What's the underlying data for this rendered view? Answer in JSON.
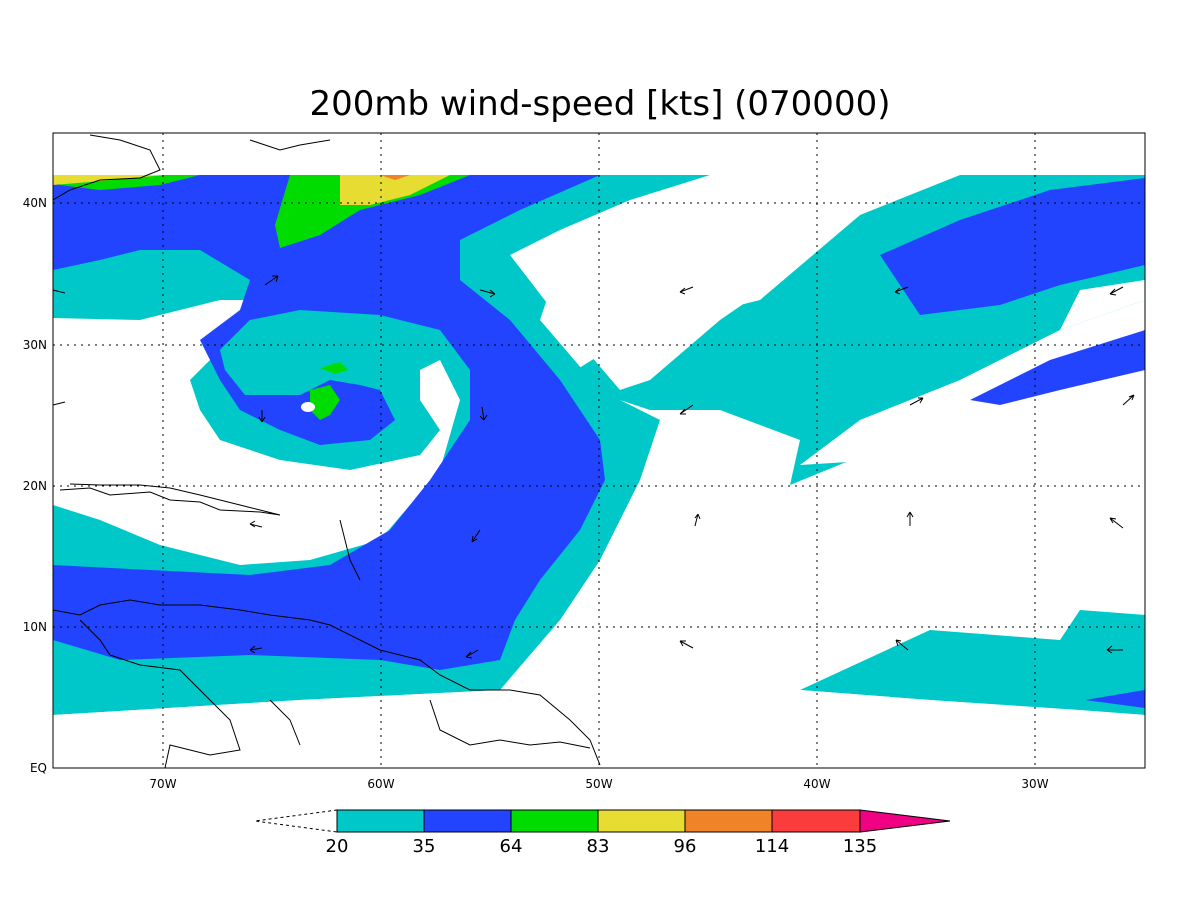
{
  "title": "200mb wind-speed [kts] (070000)",
  "x_axis": {
    "ticks": [
      "70W",
      "60W",
      "50W",
      "40W",
      "30W"
    ],
    "range_lon": [
      -75,
      -25
    ]
  },
  "y_axis": {
    "ticks": [
      "EQ",
      "10N",
      "20N",
      "30N",
      "40N"
    ],
    "range_lat": [
      0,
      45
    ]
  },
  "grid": "dotted",
  "colorbar": {
    "unit": "kts",
    "thresholds": [
      "20",
      "35",
      "64",
      "83",
      "96",
      "114",
      "135"
    ],
    "colors": [
      "#00c8c8",
      "#2244ff",
      "#00dc00",
      "#e6dc32",
      "#f08228",
      "#fa3c3c",
      "#f00082"
    ],
    "below_min": "white (dashed open arrow)",
    "above_max": "#f00082"
  },
  "colors": {
    "c20": "#00c8c8",
    "c35": "#2244ff",
    "c64": "#00dc00",
    "c83": "#e6dc32",
    "c96": "#f08228",
    "c114": "#fa3c3c",
    "c135": "#f00082",
    "coast": "#000000"
  }
}
